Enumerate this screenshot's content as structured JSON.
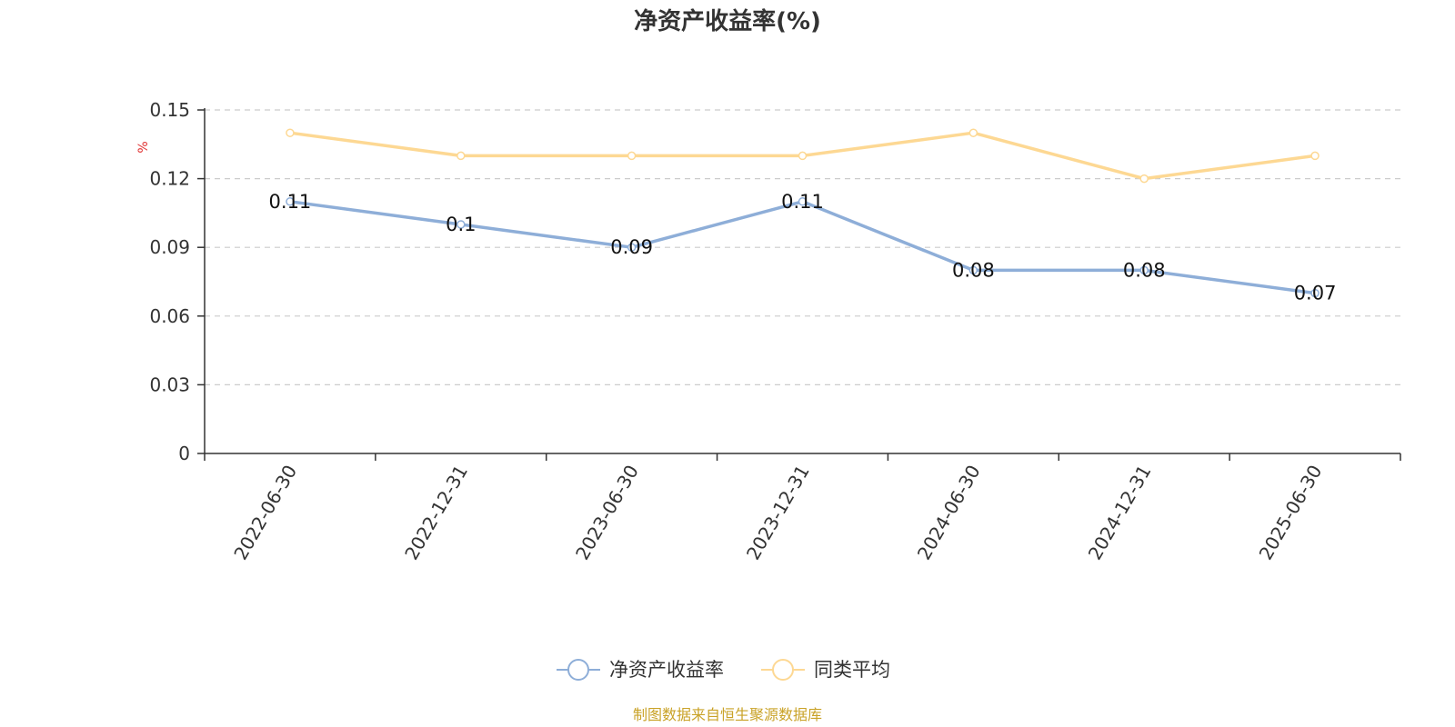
{
  "chart_data": {
    "type": "line",
    "title": "净资产收益率(%)",
    "ylabel": "%",
    "xlabel": "",
    "categories": [
      "2022-06-30",
      "2022-12-31",
      "2023-06-30",
      "2023-12-31",
      "2024-06-30",
      "2024-12-31",
      "2025-06-30"
    ],
    "yticks": [
      "0",
      "0.03",
      "0.06",
      "0.09",
      "0.12",
      "0.15"
    ],
    "ylim": [
      0,
      0.15
    ],
    "grid": true,
    "legend_position": "bottom",
    "series": [
      {
        "name": "净资产收益率",
        "values": [
          0.11,
          0.1,
          0.09,
          0.11,
          0.08,
          0.08,
          0.07
        ],
        "labels": [
          "0.11",
          "0.1",
          "0.09",
          "0.11",
          "0.08",
          "0.08",
          "0.07"
        ],
        "color": "#8eaed8"
      },
      {
        "name": "同类平均",
        "values": [
          0.14,
          0.13,
          0.13,
          0.13,
          0.14,
          0.12,
          0.13
        ],
        "color": "#fdd893"
      }
    ]
  },
  "colors": {
    "unit_label": "#e03030",
    "source": "#c9a227",
    "axis": "#333333",
    "grid": "#cccccc"
  },
  "source_text": "制图数据来自恒生聚源数据库"
}
